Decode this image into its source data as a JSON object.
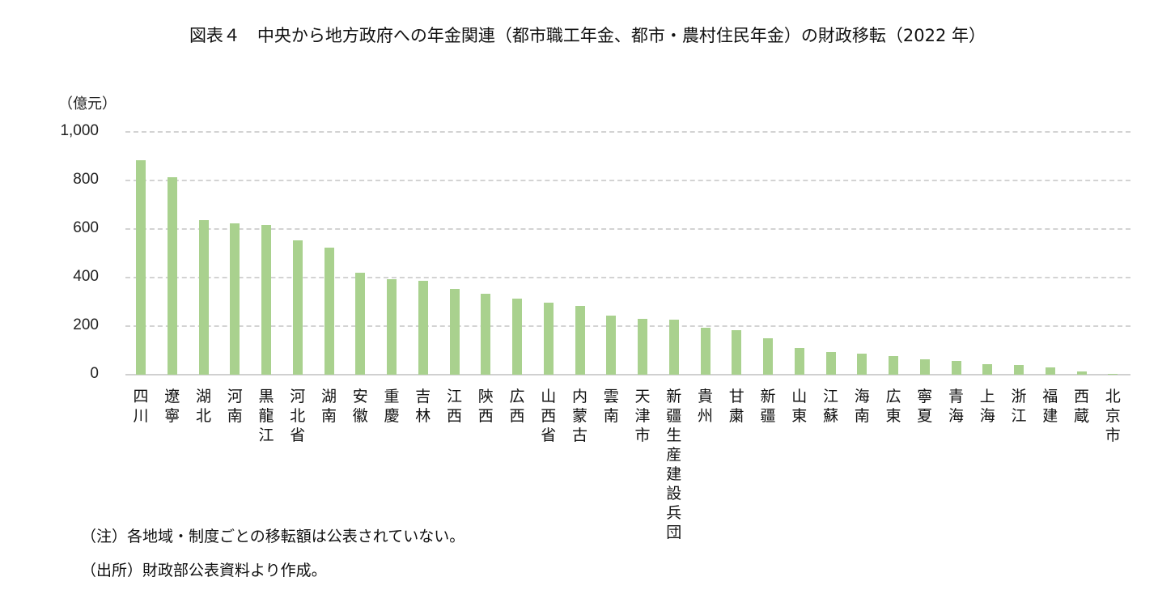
{
  "title": "図表４　中央から地方政府への年金関連（都市職工年金、都市・農村住民年金）の財政移転（2022 年）",
  "notes": {
    "note": "（注）各地域・制度ごとの移転額は公表されていない。",
    "source": "（出所）財政部公表資料より作成。"
  },
  "colors": {
    "bar": "#a9d18e",
    "grid": "#d3d3d3",
    "axis": "#d0d0d0"
  },
  "chart_data": {
    "type": "bar",
    "title": "図表４　中央から地方政府への年金関連（都市職工年金、都市・農村住民年金）の財政移転（2022 年）",
    "xlabel": "",
    "ylabel": "（億元）",
    "ylim": [
      0,
      1000
    ],
    "yticks": [
      "0",
      "200",
      "400",
      "600",
      "800",
      "1,000"
    ],
    "grid": true,
    "legend": null,
    "categories": [
      "四川",
      "遼寧",
      "湖北",
      "河南",
      "黒龍江",
      "河北省",
      "湖南",
      "安徽",
      "重慶",
      "吉林",
      "江西",
      "陝西",
      "広西",
      "山西省",
      "内蒙古",
      "雲南",
      "天津市",
      "新疆生産建設兵団",
      "貴州",
      "甘粛",
      "新疆",
      "山東",
      "江蘇",
      "海南",
      "広東",
      "寧夏",
      "青海",
      "上海",
      "浙江",
      "福建",
      "西蔵",
      "北京市"
    ],
    "values": [
      883,
      813,
      636,
      625,
      617,
      555,
      525,
      420,
      392,
      388,
      355,
      335,
      315,
      298,
      285,
      245,
      231,
      228,
      194,
      184,
      151,
      111,
      94,
      86,
      78,
      64,
      57,
      45,
      40,
      30,
      15,
      5
    ]
  }
}
